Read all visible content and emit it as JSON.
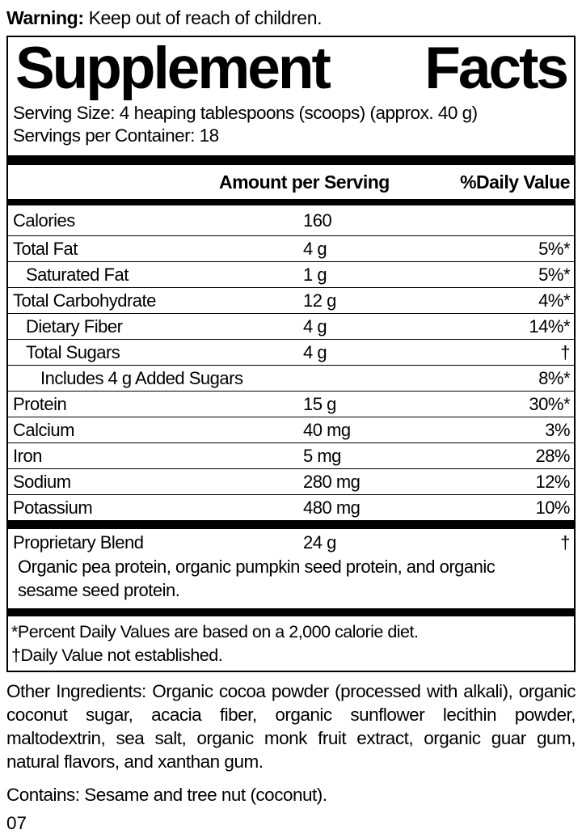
{
  "colors": {
    "text": "#000000",
    "background": "#ffffff"
  },
  "warning": {
    "label": "Warning:",
    "text": " Keep out of reach of children."
  },
  "panel": {
    "title_word1": "Supplement",
    "title_word2": "Facts",
    "serving_size": "Serving Size: 4 heaping tablespoons (scoops) (approx. 40 g)",
    "servings_per_container": "Servings per Container: 18",
    "header": {
      "amount_label": "Amount per Serving",
      "daily_value_label": "%Daily Value"
    },
    "rows": [
      {
        "name": "Calories",
        "amount": "160",
        "dv": "",
        "indent": 0
      },
      {
        "name": "Total Fat",
        "amount": "4 g",
        "dv": "5%*",
        "indent": 0
      },
      {
        "name": "Saturated Fat",
        "amount": "1 g",
        "dv": "5%*",
        "indent": 1
      },
      {
        "name": "Total Carbohydrate",
        "amount": "12 g",
        "dv": "4%*",
        "indent": 0
      },
      {
        "name": "Dietary Fiber",
        "amount": "4 g",
        "dv": "14%*",
        "indent": 1
      },
      {
        "name": "Total Sugars",
        "amount": "4 g",
        "dv": "†",
        "indent": 1
      },
      {
        "name": "Includes 4 g Added Sugars",
        "amount": "",
        "dv": "8%*",
        "indent": 2
      },
      {
        "name": "Protein",
        "amount": "15 g",
        "dv": "30%*",
        "indent": 0
      },
      {
        "name": "Calcium",
        "amount": "40 mg",
        "dv": "3%",
        "indent": 0
      },
      {
        "name": "Iron",
        "amount": "5 mg",
        "dv": "28%",
        "indent": 0
      },
      {
        "name": "Sodium",
        "amount": "280 mg",
        "dv": "12%",
        "indent": 0
      },
      {
        "name": "Potassium",
        "amount": "480 mg",
        "dv": "10%",
        "indent": 0
      }
    ],
    "proprietary": {
      "name": "Proprietary Blend",
      "amount": "24 g",
      "dv": "†",
      "description": "Organic pea protein, organic pumpkin seed protein, and organic sesame seed protein."
    },
    "footnotes": [
      "*Percent Daily Values are based on a 2,000 calorie diet.",
      "†Daily Value not established."
    ]
  },
  "other_ingredients": "Other Ingredients: Organic cocoa powder (processed with alkali), organic coconut sugar, acacia fiber, organic sunflower lecithin powder, maltodextrin, sea salt, organic monk fruit extract, organic guar gum, natural flavors, and xanthan gum.",
  "contains": "Contains: Sesame and tree nut (coconut).",
  "page_code": "07"
}
